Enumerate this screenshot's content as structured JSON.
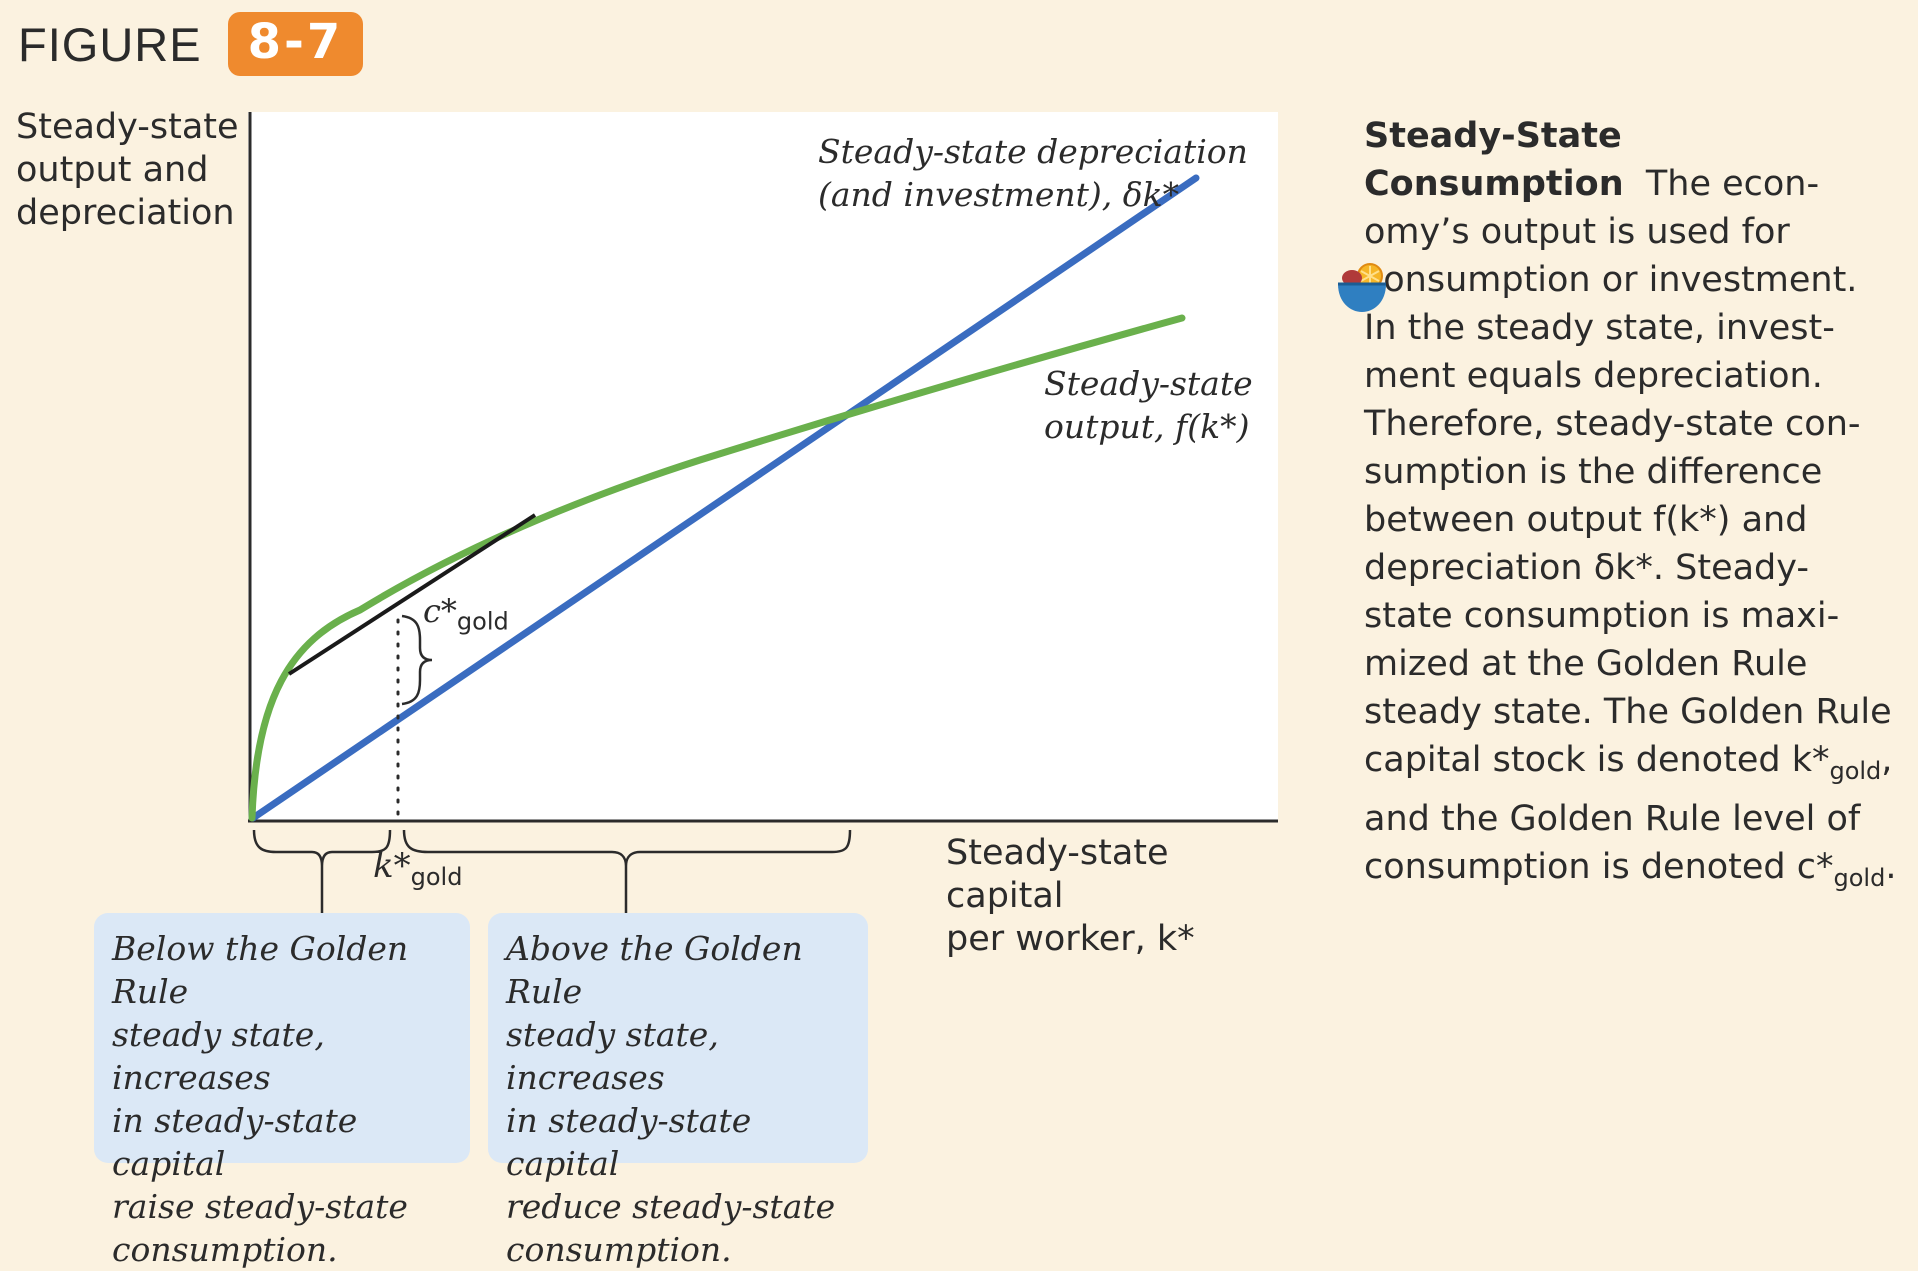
{
  "figure": {
    "label": "FIGURE",
    "number": "8-7"
  },
  "axes": {
    "y_label_lines": [
      "Steady-state",
      "output and",
      "depreciation"
    ],
    "x_label_lines": [
      "Steady-state capital",
      "per worker, k*"
    ]
  },
  "curves": {
    "depreciation_lines": [
      "Steady-state depreciation",
      "(and investment), δk*"
    ],
    "output_lines": [
      "Steady-state",
      "output, f(k*)"
    ],
    "colors": {
      "depreciation": "#3a6cc0",
      "output": "#6ab04c",
      "tangent": "#1a1a1a"
    }
  },
  "markers": {
    "k_gold": {
      "base": "k*",
      "sub": "gold"
    },
    "c_gold": {
      "base": "c*",
      "sub": "gold"
    }
  },
  "callouts": {
    "below": [
      "Below the Golden Rule",
      "steady state, increases",
      "in steady-state capital",
      "raise steady-state",
      "consumption."
    ],
    "above": [
      "Above the Golden Rule",
      "steady state, increases",
      "in steady-state capital",
      "reduce steady-state",
      "consumption."
    ]
  },
  "sidebar": {
    "title_line1": "Steady-State",
    "title_line2": "Consumption",
    "lines": [
      "The econ-",
      "omy’s output is used for",
      "consumption or investment.",
      "In the steady state, invest-",
      "ment equals depreciation.",
      "Therefore, steady-state con-",
      "sumption is the difference",
      "between output f(k*) and",
      "depreciation δk*. Steady-",
      "state consumption is maxi-",
      "mized at the Golden Rule",
      "steady state. The Golden Rule",
      "capital stock is denoted k*",
      "gold",
      ",",
      "and the Golden Rule level of",
      "consumption is denoted c*",
      "gold",
      "."
    ]
  },
  "icons": {
    "bowl": "food-bowl-icon"
  }
}
